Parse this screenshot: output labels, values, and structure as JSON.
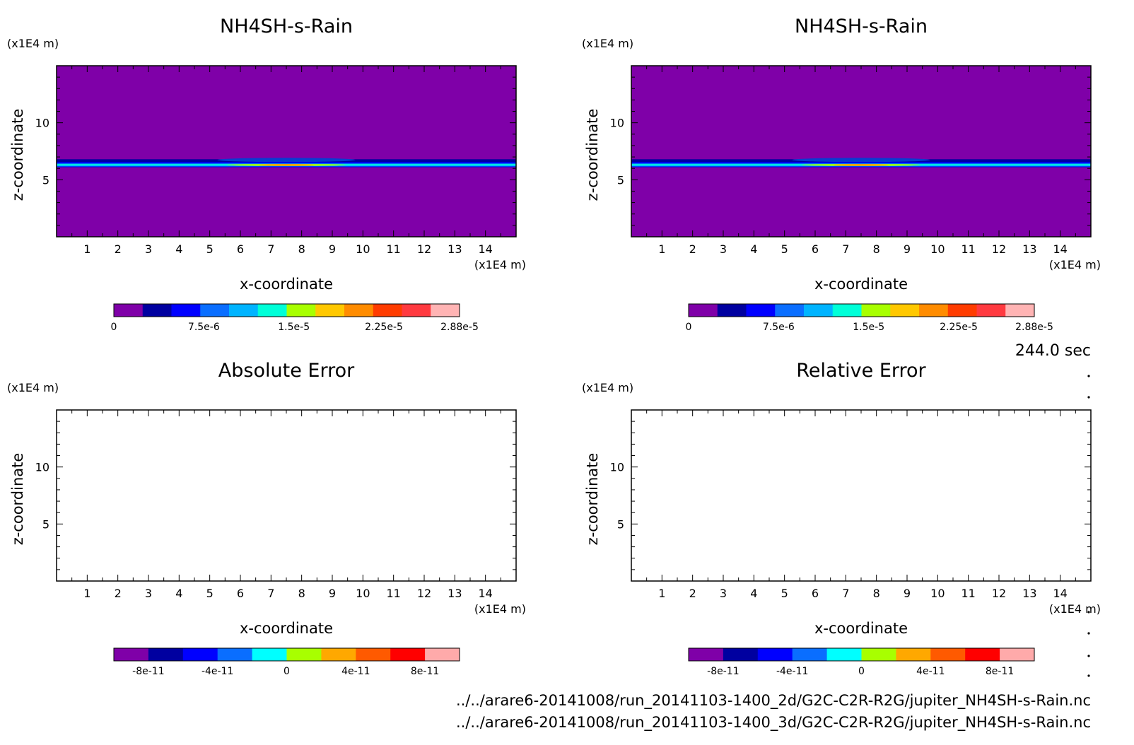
{
  "time_label": "244.0 sec",
  "source_files": [
    "../../arare6-20141008/run_20141103-1400_2d/G2C-C2R-R2G/jupiter_NH4SH-s-Rain.nc",
    "../../arare6-20141008/run_20141103-1400_3d/G2C-C2R-R2G/jupiter_NH4SH-s-Rain.nc"
  ],
  "colors": {
    "background_field": "#7f00a8",
    "mixed_palette": [
      "#7f00a8",
      "#0000a0",
      "#0000ff",
      "#0a6eff",
      "#00b4ff",
      "#00ffd8",
      "#a8ff00",
      "#ffc800",
      "#ff8c00",
      "#ff3c00",
      "#ff3a40",
      "#ffb4b4"
    ],
    "error_palette": [
      "#7f00a8",
      "#0000a0",
      "#0000ff",
      "#0a6eff",
      "#00ffff",
      "#a8ff00",
      "#ffa800",
      "#ff5a00",
      "#ff0000",
      "#ffaaaa"
    ]
  },
  "chart_data": [
    {
      "type": "heatmap",
      "title": "NH4SH-s-Rain",
      "xlabel": "x-coordinate",
      "ylabel": "z-coordinate",
      "x_unit": "(x1E4 m)",
      "y_unit": "(x1E4 m)",
      "xlim": [
        0,
        15
      ],
      "ylim": [
        0,
        15
      ],
      "x_ticks": [
        "1",
        "2",
        "3",
        "4",
        "5",
        "6",
        "7",
        "8",
        "9",
        "10",
        "11",
        "12",
        "13",
        "14"
      ],
      "y_ticks": [
        "5",
        "10"
      ],
      "field": {
        "background_value": 0,
        "layer_z_center": 6.3,
        "layer_z_range": [
          6.1,
          6.8
        ],
        "peak_x": 7.5,
        "peak_value": 2.88e-05
      },
      "colorbar": {
        "min": 0,
        "max": 2.88e-05,
        "levels": 11,
        "tick_labels": [
          "0",
          "7.5e-6",
          "1.5e-5",
          "2.25e-5",
          "2.88e-5"
        ]
      }
    },
    {
      "type": "heatmap",
      "title": "NH4SH-s-Rain",
      "xlabel": "x-coordinate",
      "ylabel": "z-coordinate",
      "x_unit": "(x1E4 m)",
      "y_unit": "(x1E4 m)",
      "xlim": [
        0,
        15
      ],
      "ylim": [
        0,
        15
      ],
      "x_ticks": [
        "1",
        "2",
        "3",
        "4",
        "5",
        "6",
        "7",
        "8",
        "9",
        "10",
        "11",
        "12",
        "13",
        "14"
      ],
      "y_ticks": [
        "5",
        "10"
      ],
      "field": {
        "background_value": 0,
        "layer_z_center": 6.3,
        "layer_z_range": [
          6.1,
          6.8
        ],
        "peak_x": 7.5,
        "peak_value": 2.88e-05
      },
      "colorbar": {
        "min": 0,
        "max": 2.88e-05,
        "levels": 11,
        "tick_labels": [
          "0",
          "7.5e-6",
          "1.5e-5",
          "2.25e-5",
          "2.88e-5"
        ]
      }
    },
    {
      "type": "heatmap",
      "title": "Absolute Error",
      "xlabel": "x-coordinate",
      "ylabel": "z-coordinate",
      "x_unit": "(x1E4 m)",
      "y_unit": "(x1E4 m)",
      "xlim": [
        0,
        15
      ],
      "ylim": [
        0,
        15
      ],
      "x_ticks": [
        "1",
        "2",
        "3",
        "4",
        "5",
        "6",
        "7",
        "8",
        "9",
        "10",
        "11",
        "12",
        "13",
        "14"
      ],
      "y_ticks": [
        "5",
        "10"
      ],
      "field": {
        "empty": true
      },
      "colorbar": {
        "min": -1e-10,
        "max": 1e-10,
        "levels": 10,
        "tick_labels": [
          "-8e-11",
          "-4e-11",
          "0",
          "4e-11",
          "8e-11"
        ]
      }
    },
    {
      "type": "heatmap",
      "title": "Relative Error",
      "xlabel": "x-coordinate",
      "ylabel": "z-coordinate",
      "x_unit": "(x1E4 m)",
      "y_unit": "(x1E4 m)",
      "xlim": [
        0,
        15
      ],
      "ylim": [
        0,
        15
      ],
      "x_ticks": [
        "1",
        "2",
        "3",
        "4",
        "5",
        "6",
        "7",
        "8",
        "9",
        "10",
        "11",
        "12",
        "13",
        "14"
      ],
      "y_ticks": [
        "5",
        "10"
      ],
      "field": {
        "empty": true
      },
      "colorbar": {
        "min": -1e-10,
        "max": 1e-10,
        "levels": 10,
        "tick_labels": [
          "-8e-11",
          "-4e-11",
          "0",
          "4e-11",
          "8e-11"
        ]
      }
    }
  ]
}
